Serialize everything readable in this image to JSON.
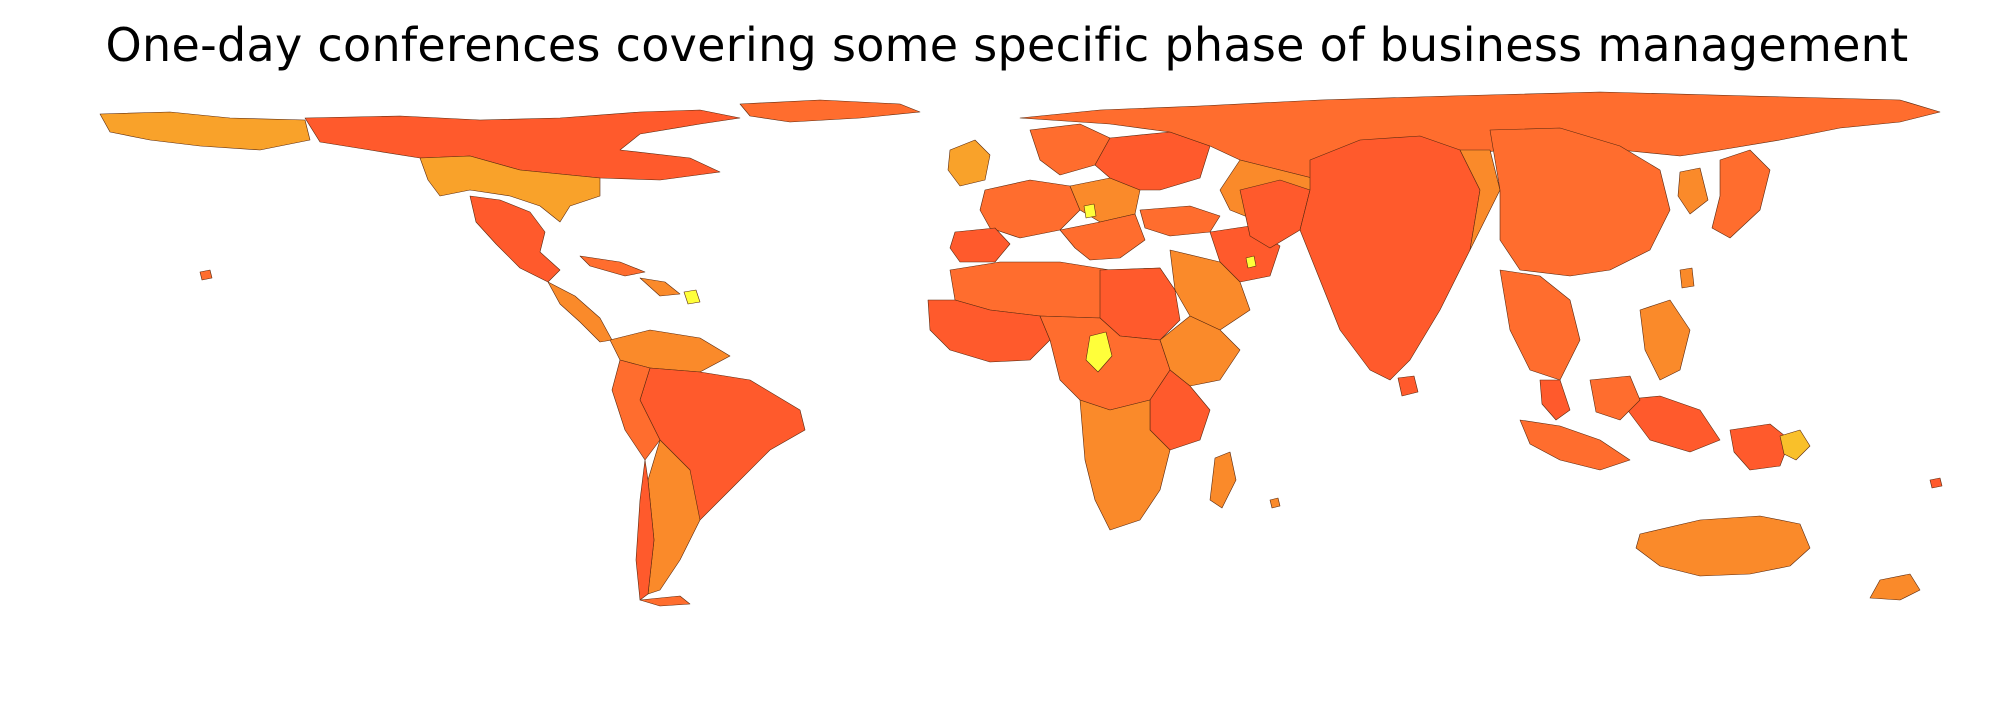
{
  "title": "One-day conferences covering some specific phase of business management",
  "palette": {
    "background": "#ffffff",
    "deep": "#ff5a2c",
    "mid": "#ff6d2e",
    "light": "#fa8a2a",
    "pale": "#f9a22a",
    "highlight": "#ffff3a",
    "border": "#5a2a10"
  },
  "map": {
    "projection": "cartogram (distorted equirectangular)",
    "highlighted_regions": [
      "Central Africa",
      "Papua New Guinea",
      "Caribbean islet"
    ]
  }
}
